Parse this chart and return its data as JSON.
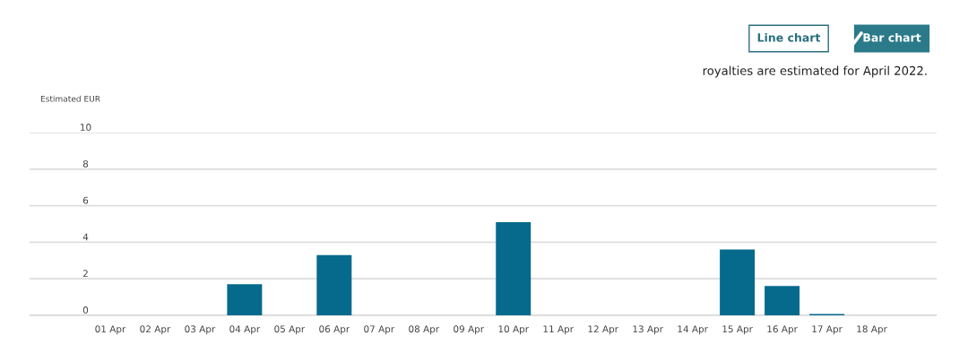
{
  "chart_data": {
    "type": "bar",
    "ylabel": "Estimated EUR",
    "categories": [
      "01 Apr",
      "02 Apr",
      "03 Apr",
      "04 Apr",
      "05 Apr",
      "06 Apr",
      "07 Apr",
      "08 Apr",
      "09 Apr",
      "10 Apr",
      "11 Apr",
      "12 Apr",
      "13 Apr",
      "14 Apr",
      "15 Apr",
      "16 Apr",
      "17 Apr",
      "18 Apr"
    ],
    "values": [
      0,
      0,
      0,
      1.7,
      0,
      3.3,
      0,
      0,
      0,
      5.1,
      0,
      0,
      0,
      0,
      3.6,
      1.6,
      0.07,
      0
    ],
    "color": "#066a8c",
    "ylim": [
      0,
      10
    ],
    "yticks": [
      0,
      2,
      4,
      6,
      8,
      10
    ],
    "grid": "y",
    "annotations": [
      "Line chart",
      "Bar chart",
      "royalties are estimated for April 2022."
    ]
  }
}
